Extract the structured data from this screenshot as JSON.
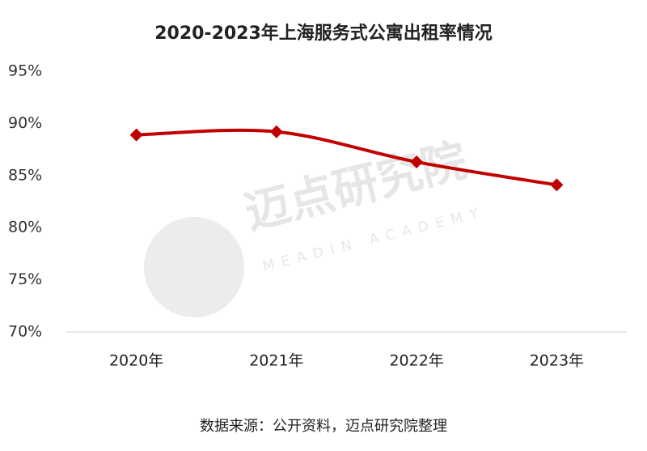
{
  "chart_data": {
    "type": "line",
    "title": "2020-2023年上海服务式公寓出租率情况",
    "categories": [
      "2020年",
      "2021年",
      "2022年",
      "2023年"
    ],
    "series": [
      {
        "name": "出租率",
        "color": "#c00000",
        "values": [
          88.9,
          89.2,
          86.3,
          84.1
        ]
      }
    ],
    "ylim": [
      70,
      95
    ],
    "yticks": [
      {
        "value": 70,
        "label": "70%"
      },
      {
        "value": 75,
        "label": "75%"
      },
      {
        "value": 80,
        "label": "80%"
      },
      {
        "value": 85,
        "label": "85%"
      },
      {
        "value": 90,
        "label": "90%"
      },
      {
        "value": 95,
        "label": "95%"
      }
    ],
    "grid": false,
    "source": "数据来源：公开资料，迈点研究院整理",
    "watermark": {
      "name": "迈点研究院",
      "sub": "MEADIN ACADEMY"
    }
  }
}
